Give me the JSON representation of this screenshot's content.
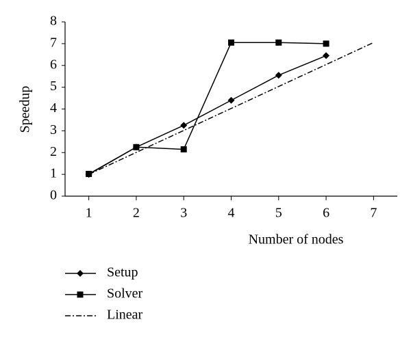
{
  "chart_data": {
    "type": "line",
    "x_label": "Number of nodes",
    "y_label": "Speedup",
    "xlim": [
      0.5,
      7.5
    ],
    "xticks": [
      1,
      2,
      3,
      4,
      5,
      6,
      7
    ],
    "ylim": [
      0,
      8
    ],
    "yticks": [
      0,
      1,
      2,
      3,
      4,
      5,
      6,
      7,
      8
    ],
    "series": [
      {
        "name": "Setup",
        "color": "#000000",
        "marker": "diamond",
        "dash": "solid",
        "x": [
          1,
          2,
          3,
          4,
          5,
          6
        ],
        "values": [
          1,
          2.25,
          3.25,
          4.4,
          5.55,
          6.45
        ]
      },
      {
        "name": "Solver",
        "color": "#000000",
        "marker": "square",
        "dash": "solid",
        "x": [
          1,
          2,
          3,
          4,
          5,
          6
        ],
        "values": [
          1.02,
          2.25,
          2.15,
          7.05,
          7.05,
          7.0
        ]
      },
      {
        "name": "Linear",
        "color": "#000000",
        "marker": "none",
        "dash": "dashdot",
        "x": [
          1,
          7
        ],
        "values": [
          1,
          7.05
        ]
      }
    ]
  }
}
